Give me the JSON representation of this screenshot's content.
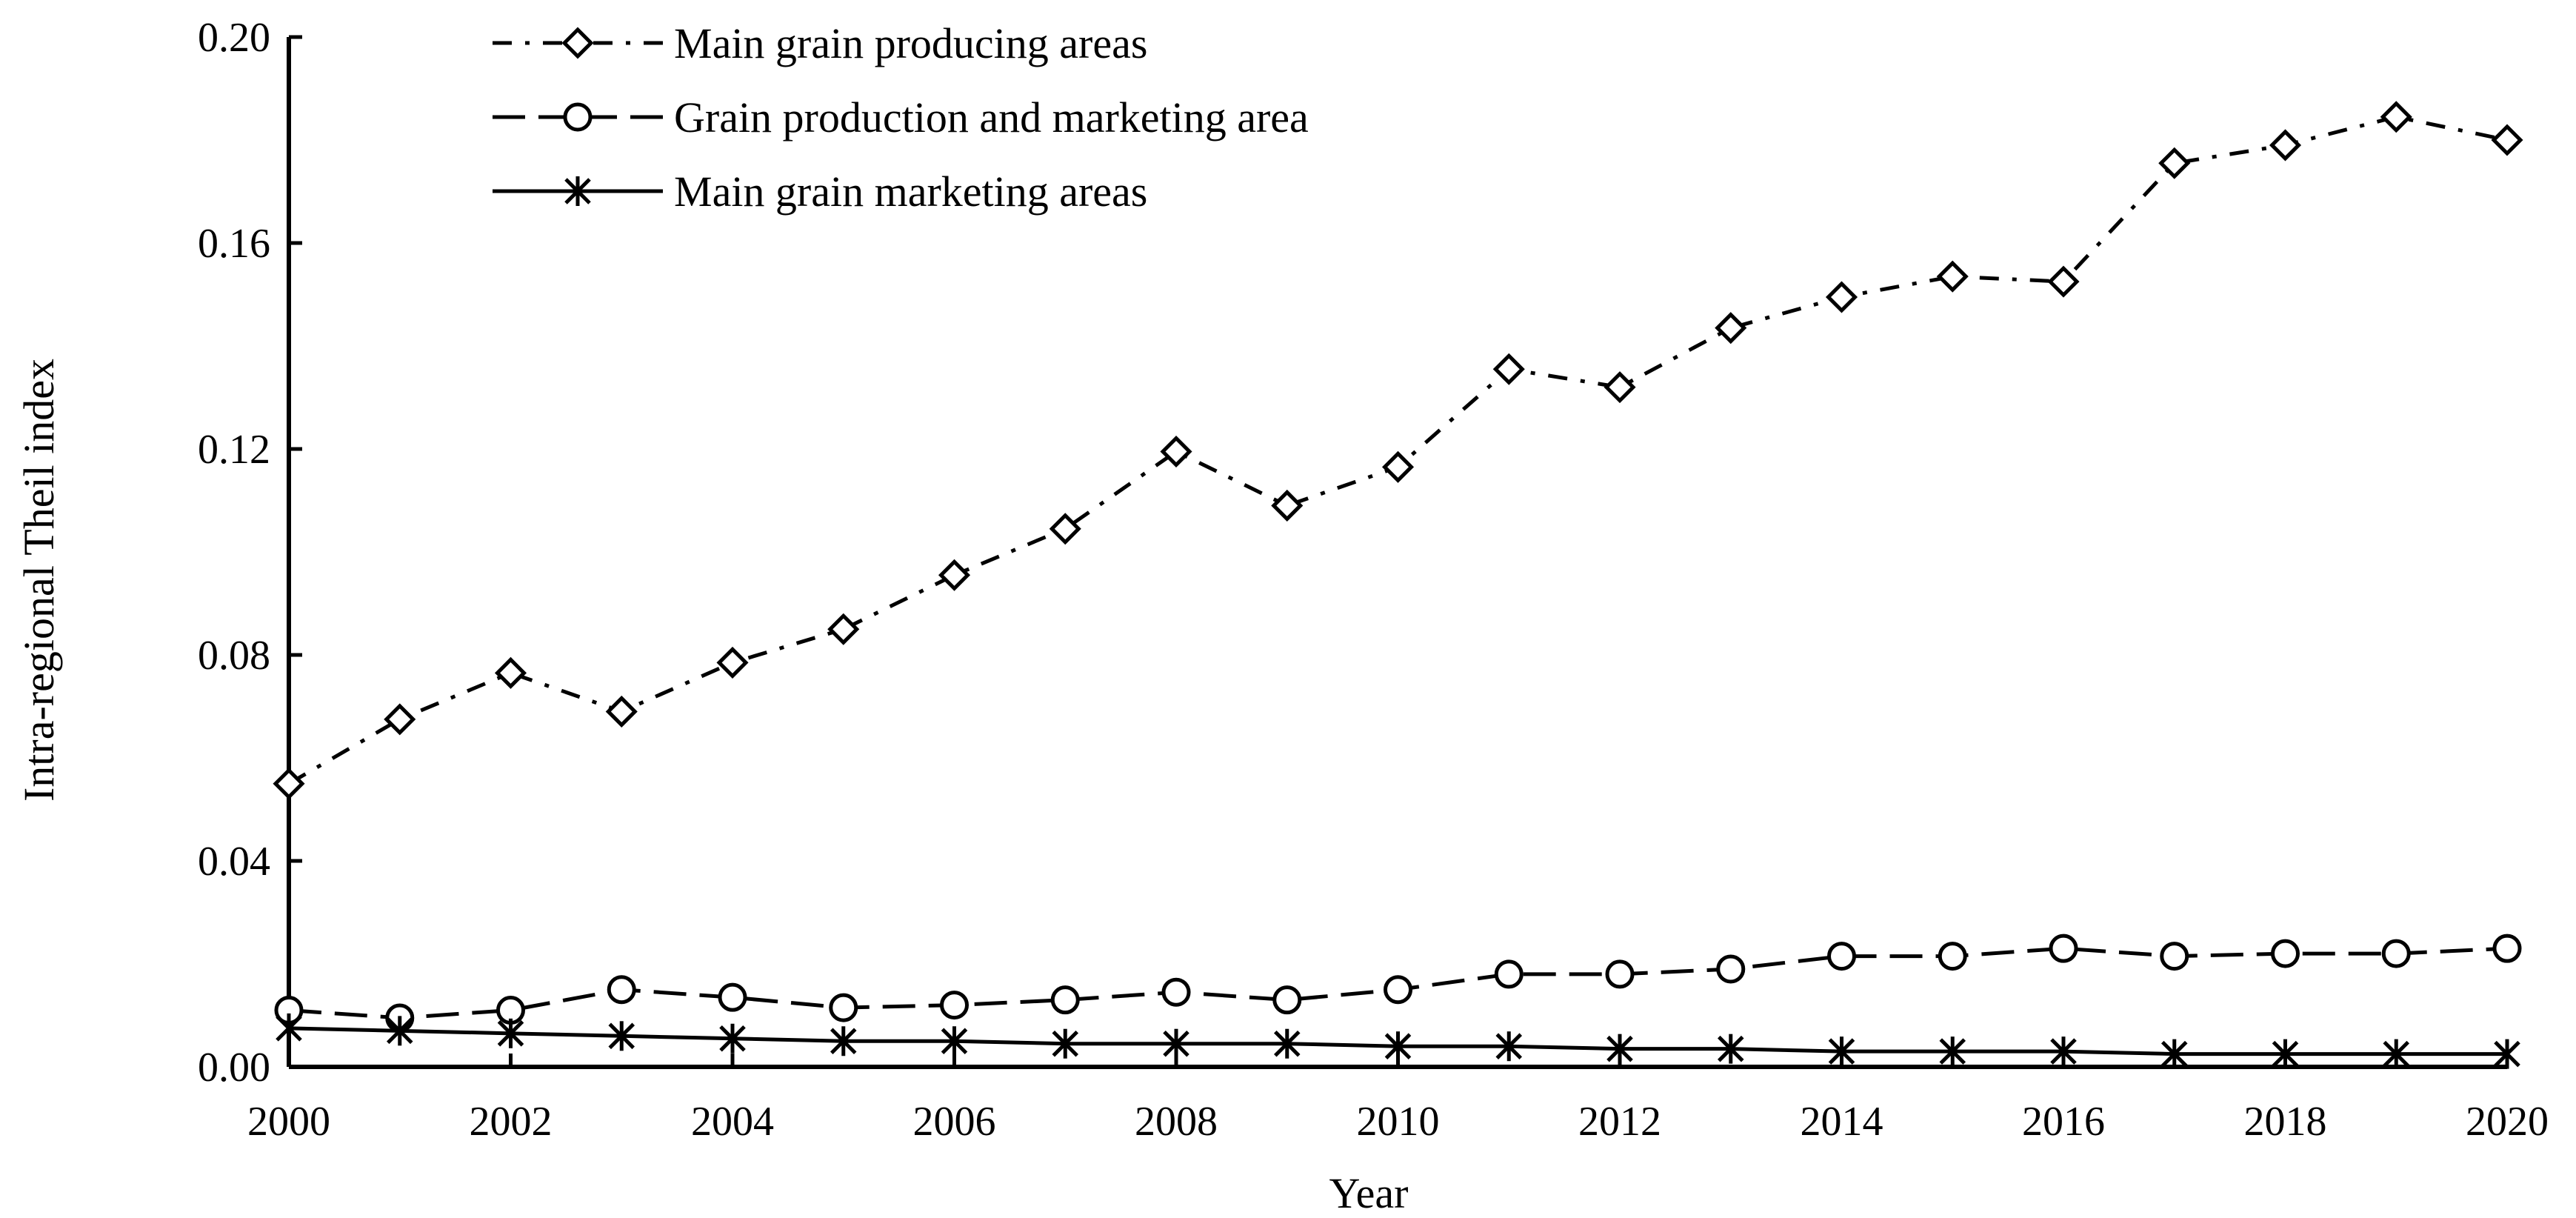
{
  "chart_data": {
    "type": "line",
    "title": "",
    "xlabel": "Year",
    "ylabel": "Intra-regional Theil index",
    "xlim": [
      2000,
      2020
    ],
    "ylim": [
      0,
      0.2
    ],
    "grid": false,
    "legend_position": "top-left",
    "x": [
      2000,
      2001,
      2002,
      2003,
      2004,
      2005,
      2006,
      2007,
      2008,
      2009,
      2010,
      2011,
      2012,
      2013,
      2014,
      2015,
      2016,
      2017,
      2018,
      2019,
      2020
    ],
    "x_tick_labels": [
      "2000",
      "2002",
      "2004",
      "2006",
      "2008",
      "2010",
      "2012",
      "2014",
      "2016",
      "2018",
      "2020"
    ],
    "y_tick_labels": [
      "0.00",
      "0.04",
      "0.08",
      "0.12",
      "0.16",
      "0.20"
    ],
    "series": [
      {
        "name": "Main grain producing areas",
        "marker": "diamond",
        "line_style": "dash-dot",
        "values": [
          0.055,
          0.0675,
          0.0765,
          0.069,
          0.0785,
          0.085,
          0.0955,
          0.1045,
          0.1195,
          0.109,
          0.1165,
          0.1355,
          0.132,
          0.1435,
          0.1495,
          0.1535,
          0.1525,
          0.1755,
          0.179,
          0.1845,
          0.18
        ]
      },
      {
        "name": "Grain production and marketing area",
        "marker": "circle",
        "line_style": "long-dash",
        "values": [
          0.011,
          0.0095,
          0.011,
          0.015,
          0.0135,
          0.0115,
          0.012,
          0.013,
          0.0145,
          0.013,
          0.015,
          0.018,
          0.018,
          0.019,
          0.0215,
          0.0215,
          0.023,
          0.0215,
          0.022,
          0.022,
          0.023
        ]
      },
      {
        "name": "Main grain marketing areas",
        "marker": "asterisk",
        "line_style": "solid",
        "values": [
          0.0075,
          0.007,
          0.0065,
          0.006,
          0.0055,
          0.005,
          0.005,
          0.0045,
          0.0045,
          0.0045,
          0.004,
          0.004,
          0.0035,
          0.0035,
          0.003,
          0.003,
          0.003,
          0.0025,
          0.0025,
          0.0025,
          0.0025
        ]
      }
    ]
  }
}
